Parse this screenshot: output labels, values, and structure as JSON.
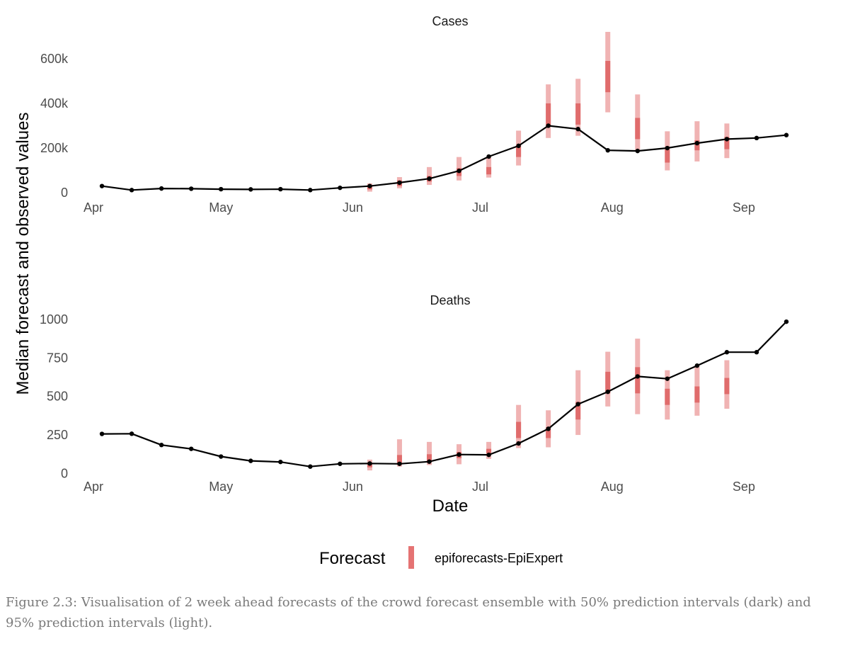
{
  "caption": "Figure 2.3: Visualisation of 2 week ahead forecasts of the crowd forecast ensemble with 50% prediction intervals (dark) and 95% prediction intervals (light).",
  "colors": {
    "line": "#000000",
    "interval_light": "#f0b3b3",
    "interval_dark": "#e06c6c",
    "legend_key": "#e57373"
  },
  "chart_data": {
    "type": "line",
    "x_axis_label": "Date",
    "y_axis_label": "Median forecast and observed values",
    "x_tick_labels": [
      "Apr",
      "May",
      "Jun",
      "Jul",
      "Aug",
      "Sep"
    ],
    "x_tick_dates": [
      "2020-04-01",
      "2020-05-01",
      "2020-06-01",
      "2020-07-01",
      "2020-08-01",
      "2020-09-01"
    ],
    "legend": {
      "title": "Forecast",
      "entries": [
        "epiforecasts-EpiExpert"
      ]
    },
    "grid": false,
    "legend_position": "bottom",
    "panels": [
      {
        "facet": "Cases",
        "y_tick_values": [
          0,
          200000,
          400000,
          600000
        ],
        "y_tick_labels": [
          "0",
          "200k",
          "400k",
          "600k"
        ],
        "ylim": [
          -25000,
          720000
        ],
        "observed": {
          "dates": [
            "2020-04-03",
            "2020-04-10",
            "2020-04-17",
            "2020-04-24",
            "2020-05-01",
            "2020-05-08",
            "2020-05-15",
            "2020-05-22",
            "2020-05-29",
            "2020-06-05",
            "2020-06-12",
            "2020-06-19",
            "2020-06-26",
            "2020-07-03",
            "2020-07-10",
            "2020-07-17",
            "2020-07-24",
            "2020-07-31",
            "2020-08-07",
            "2020-08-14",
            "2020-08-21",
            "2020-08-28",
            "2020-09-04",
            "2020-09-11"
          ],
          "values": [
            30000,
            12000,
            19000,
            18000,
            16000,
            15000,
            16000,
            12000,
            22000,
            30000,
            45000,
            63000,
            98000,
            162000,
            210000,
            300000,
            285000,
            190000,
            187000,
            200000,
            222000,
            240000,
            245000,
            258000
          ]
        },
        "intervals": [
          {
            "date": "2020-06-05",
            "low95": 5000,
            "high95": 42000,
            "low50": 15000,
            "high50": 30000
          },
          {
            "date": "2020-06-12",
            "low95": 20000,
            "high95": 70000,
            "low50": 30000,
            "high50": 55000
          },
          {
            "date": "2020-06-19",
            "low95": 35000,
            "high95": 115000,
            "low50": 50000,
            "high50": 75000
          },
          {
            "date": "2020-06-26",
            "low95": 55000,
            "high95": 160000,
            "low50": 75000,
            "high50": 110000
          },
          {
            "date": "2020-07-03",
            "low95": 68000,
            "high95": 160000,
            "low50": 82000,
            "high50": 115000
          },
          {
            "date": "2020-07-10",
            "low95": 122000,
            "high95": 278000,
            "low50": 160000,
            "high50": 215000
          },
          {
            "date": "2020-07-17",
            "low95": 245000,
            "high95": 485000,
            "low50": 295000,
            "high50": 400000
          },
          {
            "date": "2020-07-24",
            "low95": 255000,
            "high95": 510000,
            "low50": 305000,
            "high50": 400000
          },
          {
            "date": "2020-07-31",
            "low95": 360000,
            "high95": 720000,
            "low50": 450000,
            "high50": 590000
          },
          {
            "date": "2020-08-07",
            "low95": 188000,
            "high95": 440000,
            "low50": 240000,
            "high50": 335000
          },
          {
            "date": "2020-08-14",
            "low95": 100000,
            "high95": 275000,
            "low50": 135000,
            "high50": 195000
          },
          {
            "date": "2020-08-21",
            "low95": 140000,
            "high95": 320000,
            "low50": 190000,
            "high50": 235000
          },
          {
            "date": "2020-08-28",
            "low95": 155000,
            "high95": 310000,
            "low50": 195000,
            "high50": 250000
          }
        ]
      },
      {
        "facet": "Deaths",
        "y_tick_values": [
          0,
          250,
          500,
          750,
          1000
        ],
        "y_tick_labels": [
          "0",
          "250",
          "500",
          "750",
          "1000"
        ],
        "ylim": [
          -30,
          1050
        ],
        "observed": {
          "dates": [
            "2020-04-03",
            "2020-04-10",
            "2020-04-17",
            "2020-04-24",
            "2020-05-01",
            "2020-05-08",
            "2020-05-15",
            "2020-05-22",
            "2020-05-29",
            "2020-06-05",
            "2020-06-12",
            "2020-06-19",
            "2020-06-26",
            "2020-07-03",
            "2020-07-10",
            "2020-07-17",
            "2020-07-24",
            "2020-07-31",
            "2020-08-07",
            "2020-08-14",
            "2020-08-21",
            "2020-08-28",
            "2020-09-04",
            "2020-09-11"
          ],
          "values": [
            257,
            258,
            185,
            160,
            110,
            82,
            75,
            45,
            63,
            65,
            63,
            77,
            123,
            121,
            195,
            290,
            450,
            530,
            630,
            615,
            700,
            787,
            787,
            985
          ]
        },
        "intervals": [
          {
            "date": "2020-06-05",
            "low95": 20,
            "high95": 90,
            "low50": 40,
            "high50": 70
          },
          {
            "date": "2020-06-12",
            "low95": 45,
            "high95": 222,
            "low50": 65,
            "high50": 120
          },
          {
            "date": "2020-06-19",
            "low95": 55,
            "high95": 205,
            "low50": 75,
            "high50": 125
          },
          {
            "date": "2020-06-26",
            "low95": 60,
            "high95": 190,
            "low50": 100,
            "high50": 140
          },
          {
            "date": "2020-07-03",
            "low95": 95,
            "high95": 205,
            "low50": 130,
            "high50": 160
          },
          {
            "date": "2020-07-10",
            "low95": 165,
            "high95": 445,
            "low50": 230,
            "high50": 335
          },
          {
            "date": "2020-07-17",
            "low95": 170,
            "high95": 410,
            "low50": 230,
            "high50": 300
          },
          {
            "date": "2020-07-24",
            "low95": 250,
            "high95": 670,
            "low50": 350,
            "high50": 465
          },
          {
            "date": "2020-07-31",
            "low95": 435,
            "high95": 790,
            "low50": 520,
            "high50": 660
          },
          {
            "date": "2020-08-07",
            "low95": 385,
            "high95": 875,
            "low50": 520,
            "high50": 690
          },
          {
            "date": "2020-08-14",
            "low95": 350,
            "high95": 670,
            "low50": 445,
            "high50": 550
          },
          {
            "date": "2020-08-21",
            "low95": 375,
            "high95": 695,
            "low50": 460,
            "high50": 565
          },
          {
            "date": "2020-08-28",
            "low95": 420,
            "high95": 735,
            "low50": 515,
            "high50": 620
          }
        ]
      }
    ]
  }
}
